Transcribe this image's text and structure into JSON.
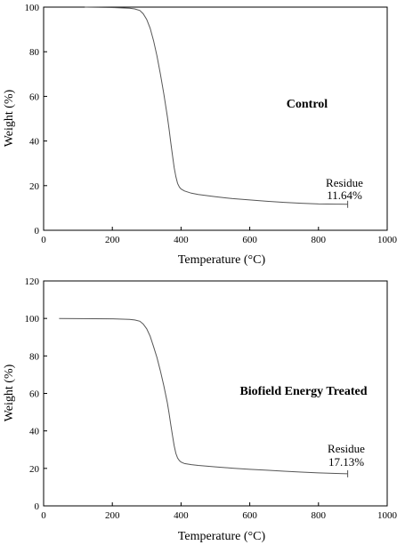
{
  "chart_data": [
    {
      "type": "line",
      "title": "Control",
      "xlabel": "Temperature (°C)",
      "ylabel": "Weight (%)",
      "xlim": [
        0,
        1000
      ],
      "ylim": [
        0,
        100
      ],
      "xticks": [
        "0",
        "200",
        "400",
        "600",
        "800",
        "1000"
      ],
      "yticks": [
        "0",
        "20",
        "40",
        "60",
        "80",
        "100"
      ],
      "grid": false,
      "annotation": {
        "line1": "Residue",
        "line2": "11.64%"
      },
      "series": [
        {
          "x": [
            120,
            200,
            250,
            265,
            280,
            290,
            300,
            310,
            320,
            330,
            340,
            350,
            360,
            365,
            370,
            375,
            380,
            385,
            390,
            395,
            400,
            410,
            430,
            450,
            500,
            550,
            600,
            650,
            700,
            750,
            800,
            850,
            885
          ],
          "y": [
            100,
            99.8,
            99.5,
            99.2,
            98.5,
            97,
            94.5,
            90.5,
            85,
            78,
            70,
            61,
            51,
            45.5,
            39.5,
            33.5,
            28,
            24,
            21,
            19.4,
            18.5,
            17.6,
            16.6,
            16,
            15,
            14.2,
            13.6,
            13,
            12.5,
            12.1,
            11.8,
            11.7,
            11.64
          ]
        }
      ]
    },
    {
      "type": "line",
      "title": "Biofield Energy Treated",
      "xlabel": "Temperature (°C)",
      "ylabel": "Weight (%)",
      "xlim": [
        0,
        1000
      ],
      "ylim": [
        0,
        120
      ],
      "xticks": [
        "0",
        "200",
        "400",
        "600",
        "800",
        "1000"
      ],
      "yticks": [
        "0",
        "20",
        "40",
        "60",
        "80",
        "100",
        "120"
      ],
      "grid": false,
      "annotation": {
        "line1": "Residue",
        "line2": "17.13%"
      },
      "series": [
        {
          "x": [
            45,
            200,
            250,
            265,
            280,
            290,
            300,
            310,
            320,
            330,
            340,
            350,
            360,
            365,
            370,
            375,
            380,
            385,
            390,
            395,
            400,
            410,
            430,
            450,
            500,
            550,
            600,
            650,
            700,
            750,
            800,
            850,
            885
          ],
          "y": [
            100,
            99.8,
            99.5,
            99.2,
            98.5,
            97,
            94.5,
            90.5,
            85,
            79,
            72,
            64,
            55,
            49.5,
            43.5,
            37.5,
            32,
            28,
            25.5,
            24.2,
            23.4,
            22.6,
            22,
            21.6,
            20.8,
            20.1,
            19.5,
            19,
            18.5,
            18,
            17.6,
            17.3,
            17.13
          ]
        }
      ]
    }
  ]
}
